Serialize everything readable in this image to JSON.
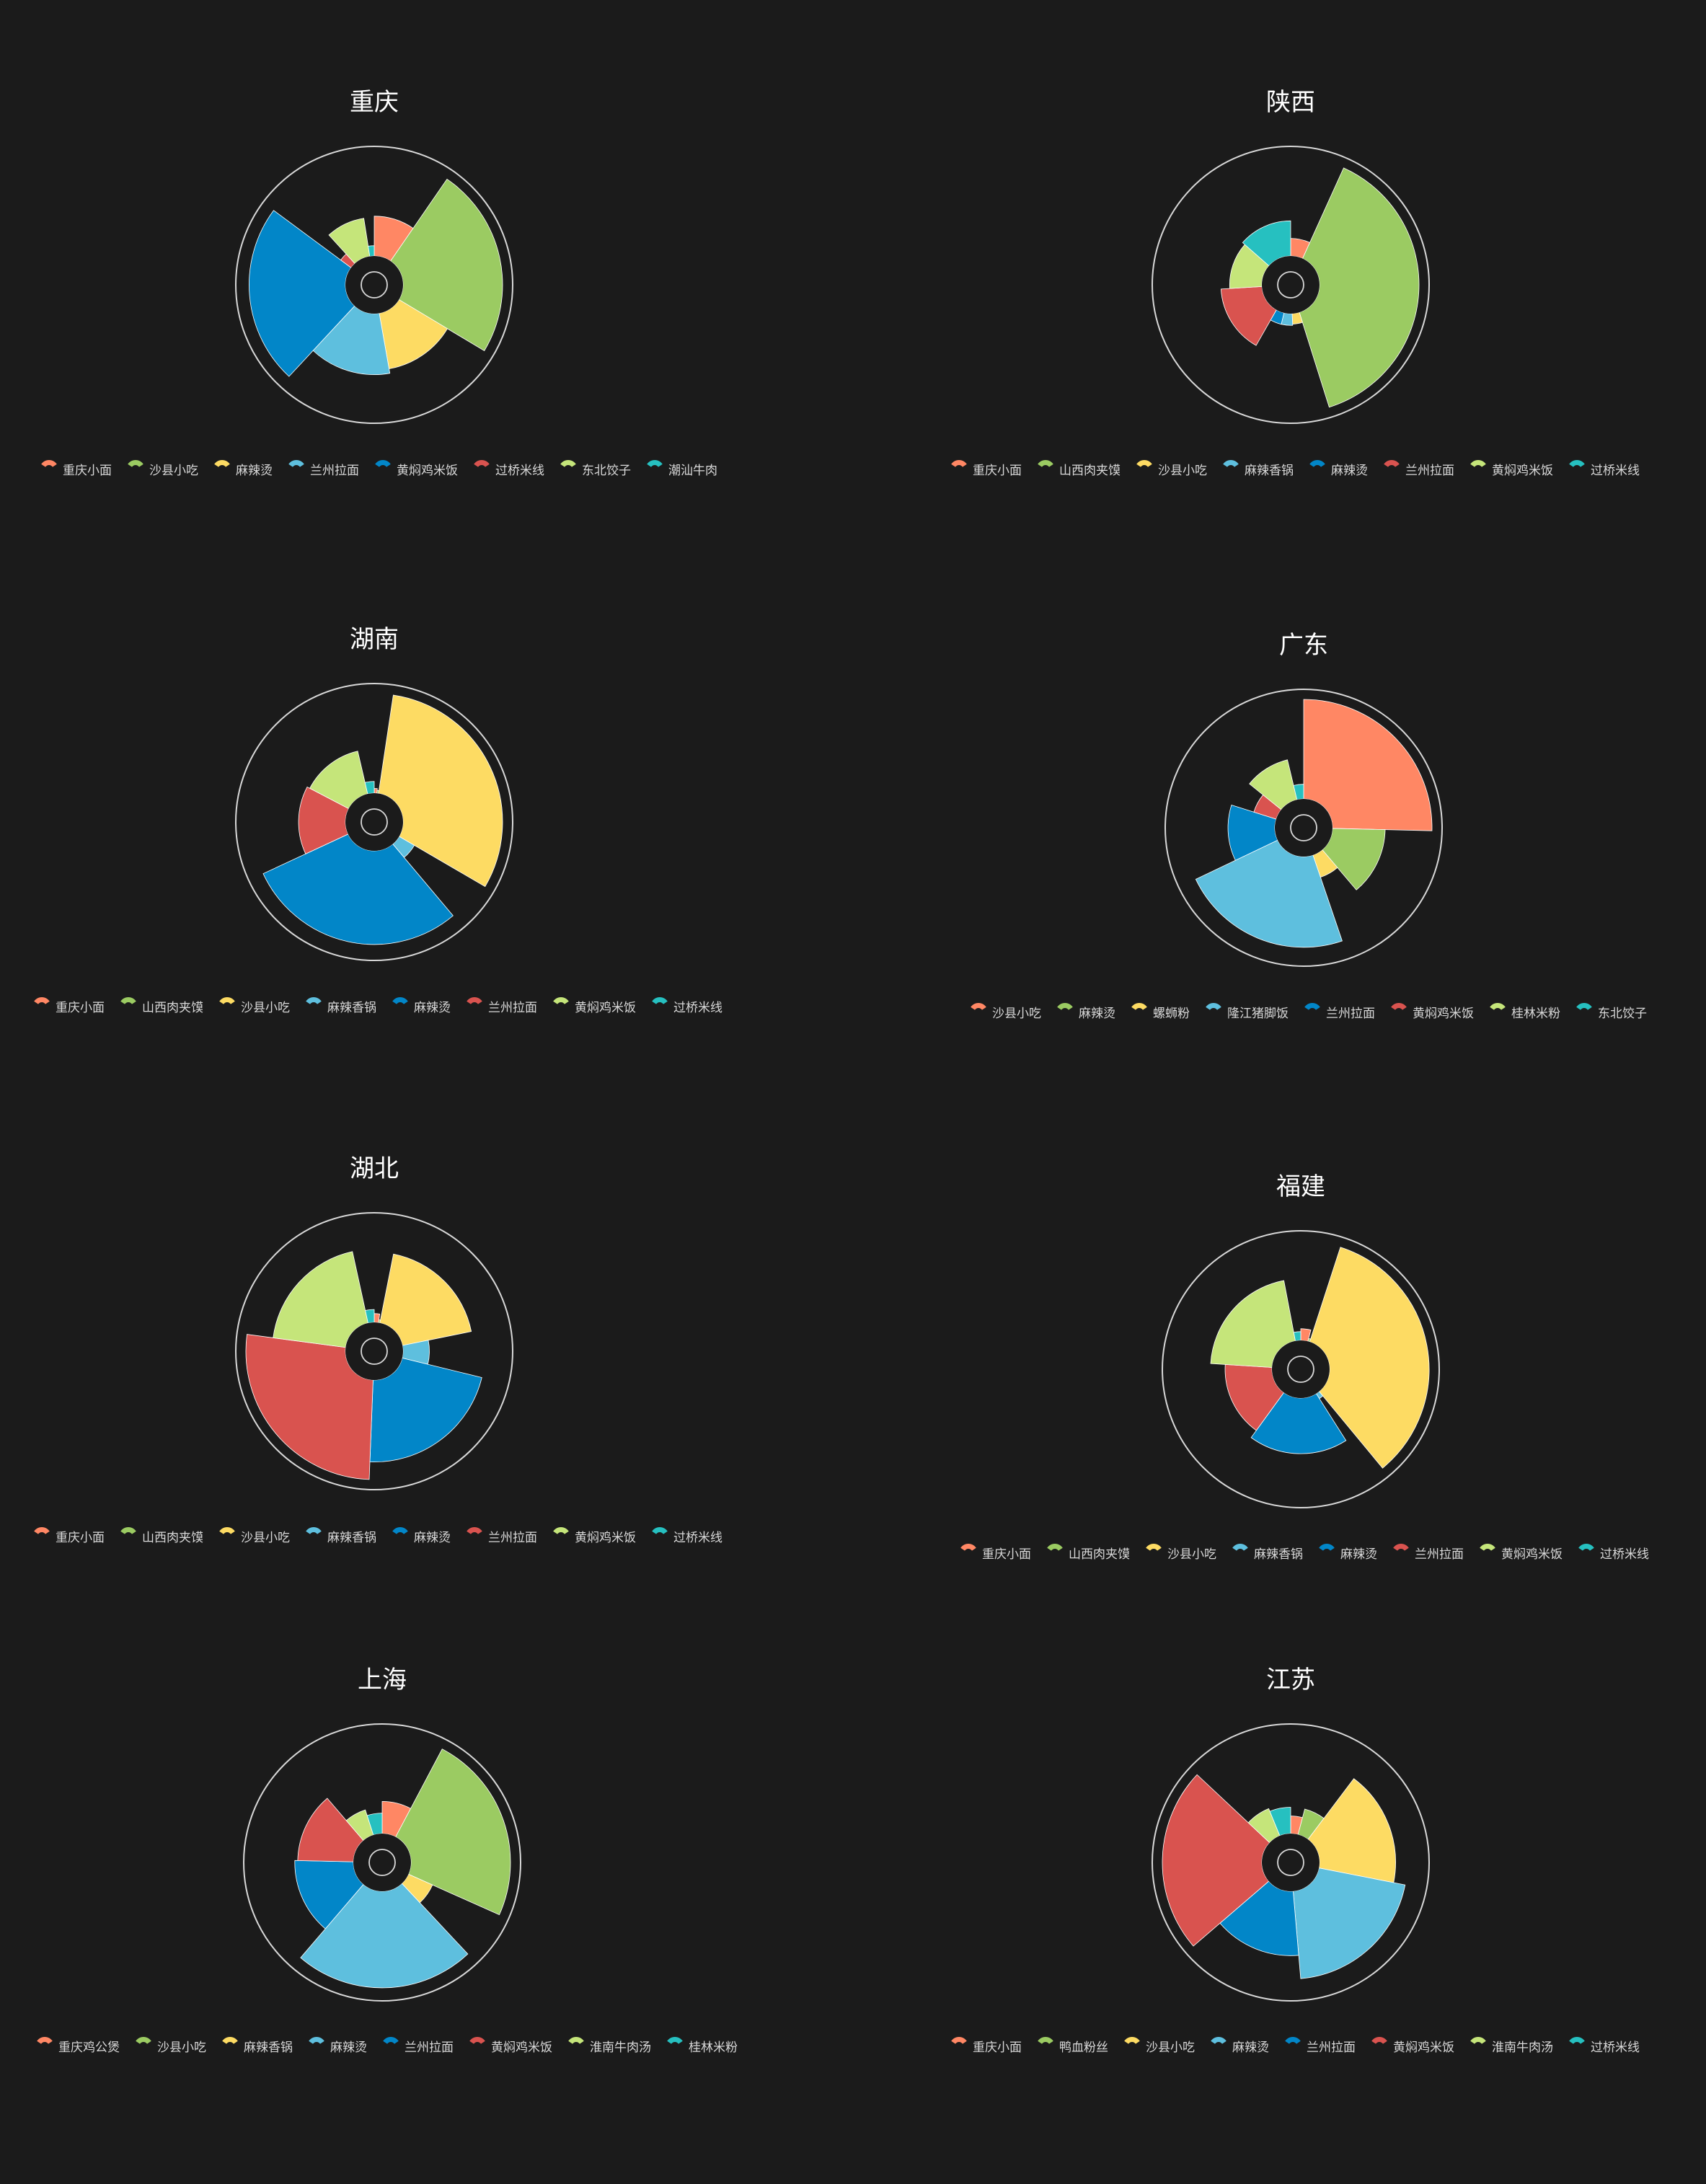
{
  "colors": [
    "#FF8764",
    "#9BCB62",
    "#FDDB63",
    "#5EBFDE",
    "#0286C8",
    "#D9534F",
    "#C5E57A",
    "#26C0C0"
  ],
  "background": "#1b1b1b",
  "chart_data": [
    {
      "type": "rose",
      "title": "重庆",
      "categories": [
        "重庆小面",
        "沙县小吃",
        "麻辣烫",
        "兰州拉面",
        "黄焖鸡米饭",
        "过桥米线",
        "东北饺子",
        "潮汕牛肉"
      ],
      "values": [
        62,
        155,
        88,
        95,
        150,
        20,
        60,
        16
      ]
    },
    {
      "type": "rose",
      "title": "陕西",
      "categories": [
        "重庆小面",
        "山西肉夹馍",
        "沙县小吃",
        "麻辣香锅",
        "麻辣烫",
        "兰州拉面",
        "黄焖鸡米饭",
        "过桥米线"
      ],
      "values": [
        30,
        170,
        18,
        20,
        20,
        70,
        55,
        60
      ]
    },
    {
      "type": "rose",
      "title": "湖南",
      "categories": [
        "重庆小面",
        "山西肉夹馍",
        "沙县小吃",
        "麻辣香锅",
        "麻辣烫",
        "兰州拉面",
        "黄焖鸡米饭",
        "过桥米线"
      ],
      "values": [
        8,
        5,
        170,
        30,
        160,
        80,
        75,
        20
      ]
    },
    {
      "type": "rose",
      "title": "广东",
      "categories": [
        "沙县小吃",
        "麻辣烫",
        "螺蛳粉",
        "隆江猪脚饭",
        "兰州拉面",
        "黄焖鸡米饭",
        "桂林米粉",
        "东北饺子"
      ],
      "values": [
        170,
        90,
        40,
        155,
        80,
        40,
        70,
        25
      ]
    },
    {
      "type": "rose",
      "title": "湖北",
      "categories": [
        "重庆小面",
        "山西肉夹馍",
        "沙县小吃",
        "麻辣香锅",
        "麻辣烫",
        "兰州拉面",
        "黄焖鸡米饭",
        "过桥米线"
      ],
      "values": [
        15,
        5,
        120,
        45,
        140,
        170,
        125,
        22
      ]
    },
    {
      "type": "rose",
      "title": "福建",
      "categories": [
        "重庆小面",
        "山西肉夹馍",
        "沙县小吃",
        "麻辣香锅",
        "麻辣烫",
        "兰州拉面",
        "黄焖鸡米饭",
        "过桥米线"
      ],
      "values": [
        20,
        5,
        170,
        10,
        95,
        80,
        105,
        15
      ]
    },
    {
      "type": "rose",
      "title": "上海",
      "categories": [
        "重庆鸡公煲",
        "沙县小吃",
        "麻辣香锅",
        "麻辣烫",
        "兰州拉面",
        "黄焖鸡米饭",
        "淮南牛肉汤",
        "桂林米粉"
      ],
      "values": [
        55,
        170,
        45,
        165,
        100,
        95,
        45,
        35
      ]
    },
    {
      "type": "rose",
      "title": "江苏",
      "categories": [
        "重庆小面",
        "鸭血粉丝",
        "沙县小吃",
        "麻辣烫",
        "兰州拉面",
        "黄焖鸡米饭",
        "淮南牛肉汤",
        "过桥米线"
      ],
      "values": [
        30,
        45,
        130,
        150,
        110,
        170,
        50,
        45
      ]
    }
  ]
}
